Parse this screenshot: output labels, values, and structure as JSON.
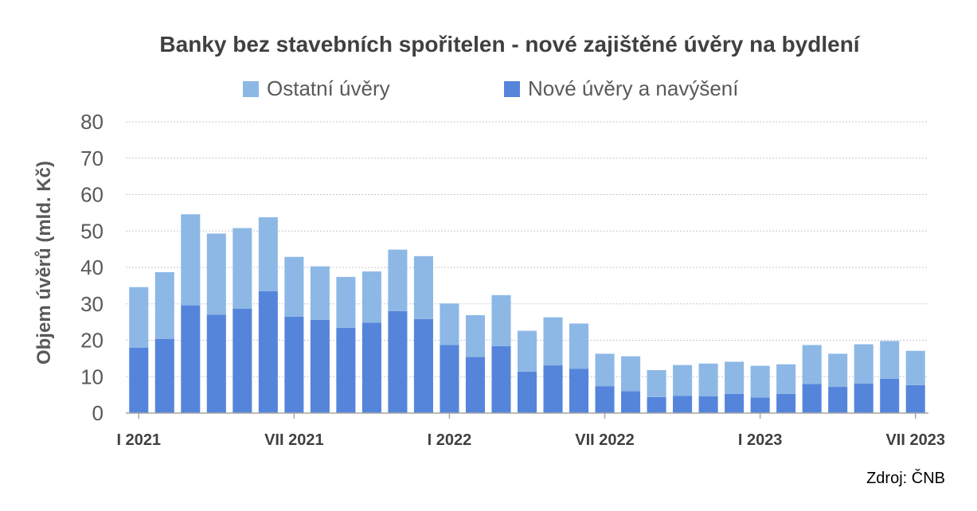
{
  "chart_data": {
    "type": "bar",
    "stacked": true,
    "title": "Banky bez stavebních spořitelen - nové zajištěné úvěry na bydlení",
    "ylabel": "Objem úvěrů (mld. Kč)",
    "xlabel": "",
    "ylim": [
      0,
      80
    ],
    "yticks": [
      0,
      10,
      20,
      30,
      40,
      50,
      60,
      70,
      80
    ],
    "grid": true,
    "legend_position": "top",
    "source": "Zdroj: ČNB",
    "x_tick_labels": [
      {
        "index": 0,
        "label": "I 2021"
      },
      {
        "index": 6,
        "label": "VII 2021"
      },
      {
        "index": 12,
        "label": "I 2022"
      },
      {
        "index": 18,
        "label": "VII 2022"
      },
      {
        "index": 24,
        "label": "I 2023"
      },
      {
        "index": 30,
        "label": "VII 2023"
      }
    ],
    "categories": [
      "I 2021",
      "II 2021",
      "III 2021",
      "IV 2021",
      "V 2021",
      "VI 2021",
      "VII 2021",
      "VIII 2021",
      "IX 2021",
      "X 2021",
      "XI 2021",
      "XII 2021",
      "I 2022",
      "II 2022",
      "III 2022",
      "IV 2022",
      "V 2022",
      "VI 2022",
      "VII 2022",
      "VIII 2022",
      "IX 2022",
      "X 2022",
      "XI 2022",
      "XII 2022",
      "I 2023",
      "II 2023",
      "III 2023",
      "IV 2023",
      "V 2023",
      "VI 2023",
      "VII 2023"
    ],
    "series": [
      {
        "name": "Nové úvěry a navýšení",
        "color": "#5585DB",
        "values": [
          18.0,
          20.4,
          29.6,
          27.0,
          28.7,
          33.5,
          26.5,
          25.6,
          23.4,
          24.8,
          28.0,
          25.8,
          18.7,
          15.4,
          18.4,
          11.4,
          13.1,
          12.2,
          7.4,
          6.0,
          4.4,
          4.7,
          4.6,
          5.3,
          4.3,
          5.3,
          8.0,
          7.2,
          8.1,
          9.4,
          7.7
        ]
      },
      {
        "name": "Ostatní úvěry",
        "color": "#8DB8E6",
        "values": [
          16.6,
          18.3,
          25.0,
          22.3,
          22.1,
          20.3,
          16.4,
          14.7,
          14.0,
          14.1,
          16.9,
          17.3,
          11.4,
          11.5,
          14.0,
          11.2,
          13.2,
          12.4,
          8.9,
          9.6,
          7.4,
          8.5,
          9.0,
          8.8,
          8.7,
          8.1,
          10.7,
          9.1,
          10.8,
          10.4,
          9.4
        ]
      }
    ]
  }
}
